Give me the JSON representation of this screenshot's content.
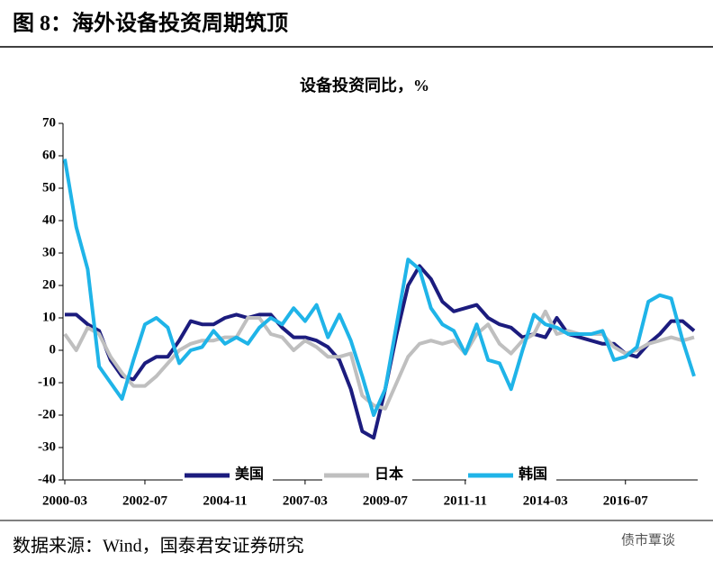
{
  "header": {
    "title": "图 8：海外设备投资周期筑顶"
  },
  "chart_data": {
    "type": "line",
    "title": "设备投资同比，%",
    "categories": [
      "2000-03",
      null,
      null,
      null,
      null,
      null,
      null,
      "2002-07",
      null,
      null,
      null,
      null,
      null,
      null,
      "2004-11",
      null,
      null,
      null,
      null,
      null,
      null,
      "2007-03",
      null,
      null,
      null,
      null,
      null,
      null,
      "2009-07",
      null,
      null,
      null,
      null,
      null,
      null,
      "2011-11",
      null,
      null,
      null,
      null,
      null,
      null,
      "2014-03",
      null,
      null,
      null,
      null,
      null,
      null,
      "2016-07",
      null,
      null,
      null,
      null,
      null,
      null
    ],
    "series": [
      {
        "name": "美国",
        "color": "#1c1c7e",
        "values": [
          11,
          11,
          8,
          6,
          -3,
          -8,
          -9,
          -4,
          -2,
          -2,
          3,
          9,
          8,
          8,
          10,
          11,
          10,
          11,
          11,
          7,
          4,
          4,
          3,
          1,
          -3,
          -12,
          -25,
          -27,
          -12,
          5,
          20,
          26,
          22,
          15,
          12,
          13,
          14,
          10,
          8,
          7,
          4,
          5,
          4,
          10,
          5,
          4,
          3,
          2,
          2,
          -1,
          -2,
          2,
          5,
          9,
          9,
          6
        ]
      },
      {
        "name": "日本",
        "color": "#bfbfbf",
        "values": [
          5,
          0,
          7,
          5,
          -2,
          -7,
          -11,
          -11,
          -8,
          -4,
          0,
          2,
          3,
          3,
          4,
          4,
          10,
          10,
          5,
          4,
          0,
          3,
          1,
          -2,
          -2,
          -1,
          -14,
          -17,
          -18,
          -10,
          -2,
          2,
          3,
          2,
          3,
          -1,
          5,
          8,
          2,
          -1,
          3,
          5,
          12,
          5,
          6,
          5,
          5,
          5,
          1,
          -1,
          0,
          2,
          3,
          4,
          3,
          4
        ]
      },
      {
        "name": "韩国",
        "color": "#1fb4e8",
        "values": [
          59,
          38,
          25,
          -5,
          -10,
          -15,
          -3,
          8,
          10,
          7,
          -4,
          0,
          1,
          6,
          2,
          4,
          2,
          7,
          10,
          8,
          13,
          9,
          14,
          4,
          11,
          3,
          -8,
          -20,
          -12,
          8,
          28,
          25,
          13,
          8,
          6,
          -1,
          8,
          -3,
          -4,
          -12,
          0,
          11,
          8,
          7,
          5,
          5,
          5,
          6,
          -3,
          -2,
          1,
          15,
          17,
          16,
          3,
          -8
        ]
      }
    ],
    "ylim": [
      -40,
      70
    ],
    "yticks": [
      -40,
      -30,
      -20,
      -10,
      0,
      10,
      20,
      30,
      40,
      50,
      60,
      70
    ],
    "legend": "bottom"
  },
  "footer": {
    "source": "数据来源：Wind，国泰君安证券研究",
    "watermark": "债市覃谈"
  }
}
